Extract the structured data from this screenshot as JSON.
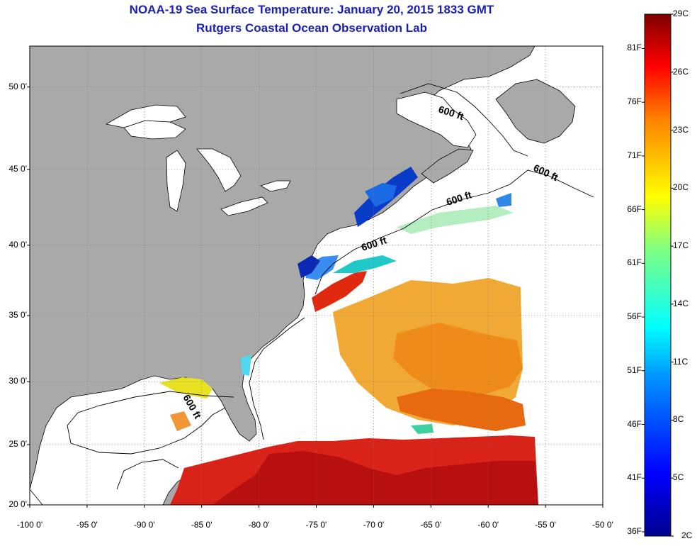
{
  "title": "NOAA-19 Sea Surface Temperature:  January 20, 2015 1833 GMT",
  "subtitle": "Rutgers Coastal Ocean Observation Lab",
  "lat_labels": [
    {
      "label": "50 0'",
      "lat": 50
    },
    {
      "label": "45 0'",
      "lat": 45
    },
    {
      "label": "40 0'",
      "lat": 40
    },
    {
      "label": "35 0'",
      "lat": 35
    },
    {
      "label": "30 0'",
      "lat": 30
    },
    {
      "label": "25 0'",
      "lat": 25
    },
    {
      "label": "20 0'",
      "lat": 20
    }
  ],
  "lon_labels": [
    {
      "label": "-100 0'",
      "lon": -100
    },
    {
      "label": "-95 0'",
      "lon": -95
    },
    {
      "label": "-90 0'",
      "lon": -90
    },
    {
      "label": "-85 0'",
      "lon": -85
    },
    {
      "label": "-80 0'",
      "lon": -80
    },
    {
      "label": "-75 0'",
      "lon": -75
    },
    {
      "label": "-70 0'",
      "lon": -70
    },
    {
      "label": "-65 0'",
      "lon": -65
    },
    {
      "label": "-60 0'",
      "lon": -60
    },
    {
      "label": "-55 0'",
      "lon": -55
    },
    {
      "label": "-50 0'",
      "lon": -50
    }
  ],
  "isobath_labels": [
    "600 ft",
    "600 ft",
    "600 ft",
    "600 ft",
    "600 ft"
  ],
  "colorbar": {
    "min_c": 2,
    "max_c": 29,
    "celsius_labels": [
      "29C",
      "26C",
      "23C",
      "20C",
      "17C",
      "14C",
      "11C",
      "8C",
      "5C",
      "2C"
    ],
    "fahrenheit_labels": [
      "81F",
      "76F",
      "71F",
      "66F",
      "61F",
      "56F",
      "51F",
      "46F",
      "41F",
      "36F"
    ]
  },
  "colors": {
    "land": "#a9a9a9",
    "ocean_no_data": "#ffffff",
    "title_text": "#1a1fb4",
    "sst_cold": "#0a1e9a",
    "sst_cool": "#1bd0e6",
    "sst_mild": "#e6e61e",
    "sst_warm": "#f28a1e",
    "sst_hot": "#c81414"
  }
}
